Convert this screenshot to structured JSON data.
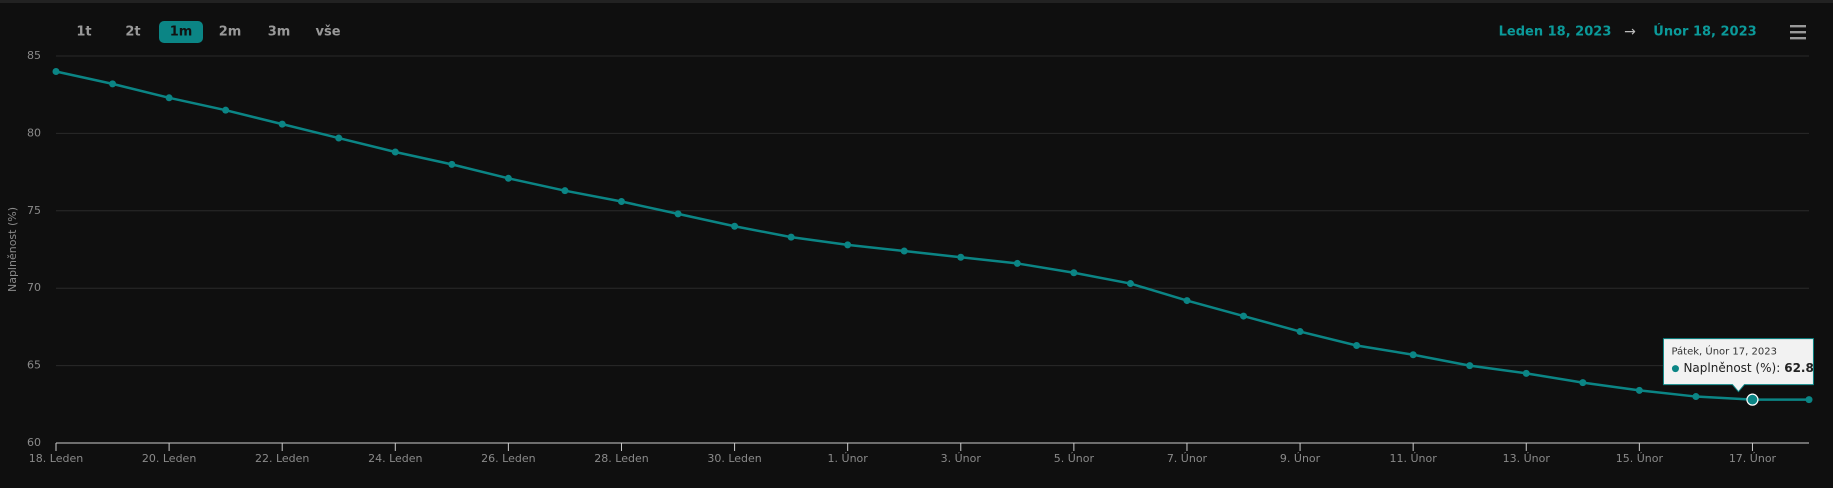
{
  "range_buttons": [
    "1t",
    "2t",
    "1m",
    "2m",
    "3m",
    "vše"
  ],
  "active_range": 2,
  "date_range": {
    "from": "Leden 18, 2023",
    "arrow": "→",
    "to": "Únor 18, 2023"
  },
  "tooltip": {
    "header": "Pátek, Únor 17, 2023",
    "label": "Naplněnost (%):",
    "index": 30
  },
  "chart_data": {
    "type": "line",
    "y_label": "Naplněnost (%)",
    "categories": [
      "18. Leden",
      null,
      "20. Leden",
      null,
      "22. Leden",
      null,
      "24. Leden",
      null,
      "26. Leden",
      null,
      "28. Leden",
      null,
      "30. Leden",
      null,
      "1. Únor",
      null,
      "3. Únor",
      null,
      "5. Únor",
      null,
      "7. Únor",
      null,
      "9. Únor",
      null,
      "11. Únor",
      null,
      "13. Únor",
      null,
      "15. Únor",
      null,
      "17. Únor",
      null
    ],
    "series": [
      {
        "name": "Naplněnost (%)",
        "color": "#0b8585",
        "values": [
          84.0,
          83.2,
          82.3,
          81.5,
          80.6,
          79.7,
          78.8,
          78.0,
          77.1,
          76.3,
          75.6,
          74.8,
          74.0,
          73.3,
          72.8,
          72.4,
          72.0,
          71.6,
          71.0,
          70.3,
          69.2,
          68.2,
          67.2,
          66.3,
          65.7,
          65.0,
          64.5,
          63.9,
          63.4,
          63.0,
          62.8,
          62.8
        ]
      }
    ],
    "ylim": [
      60,
      85
    ],
    "yticks": [
      60,
      65,
      70,
      75,
      80,
      85
    ],
    "grid": true
  }
}
